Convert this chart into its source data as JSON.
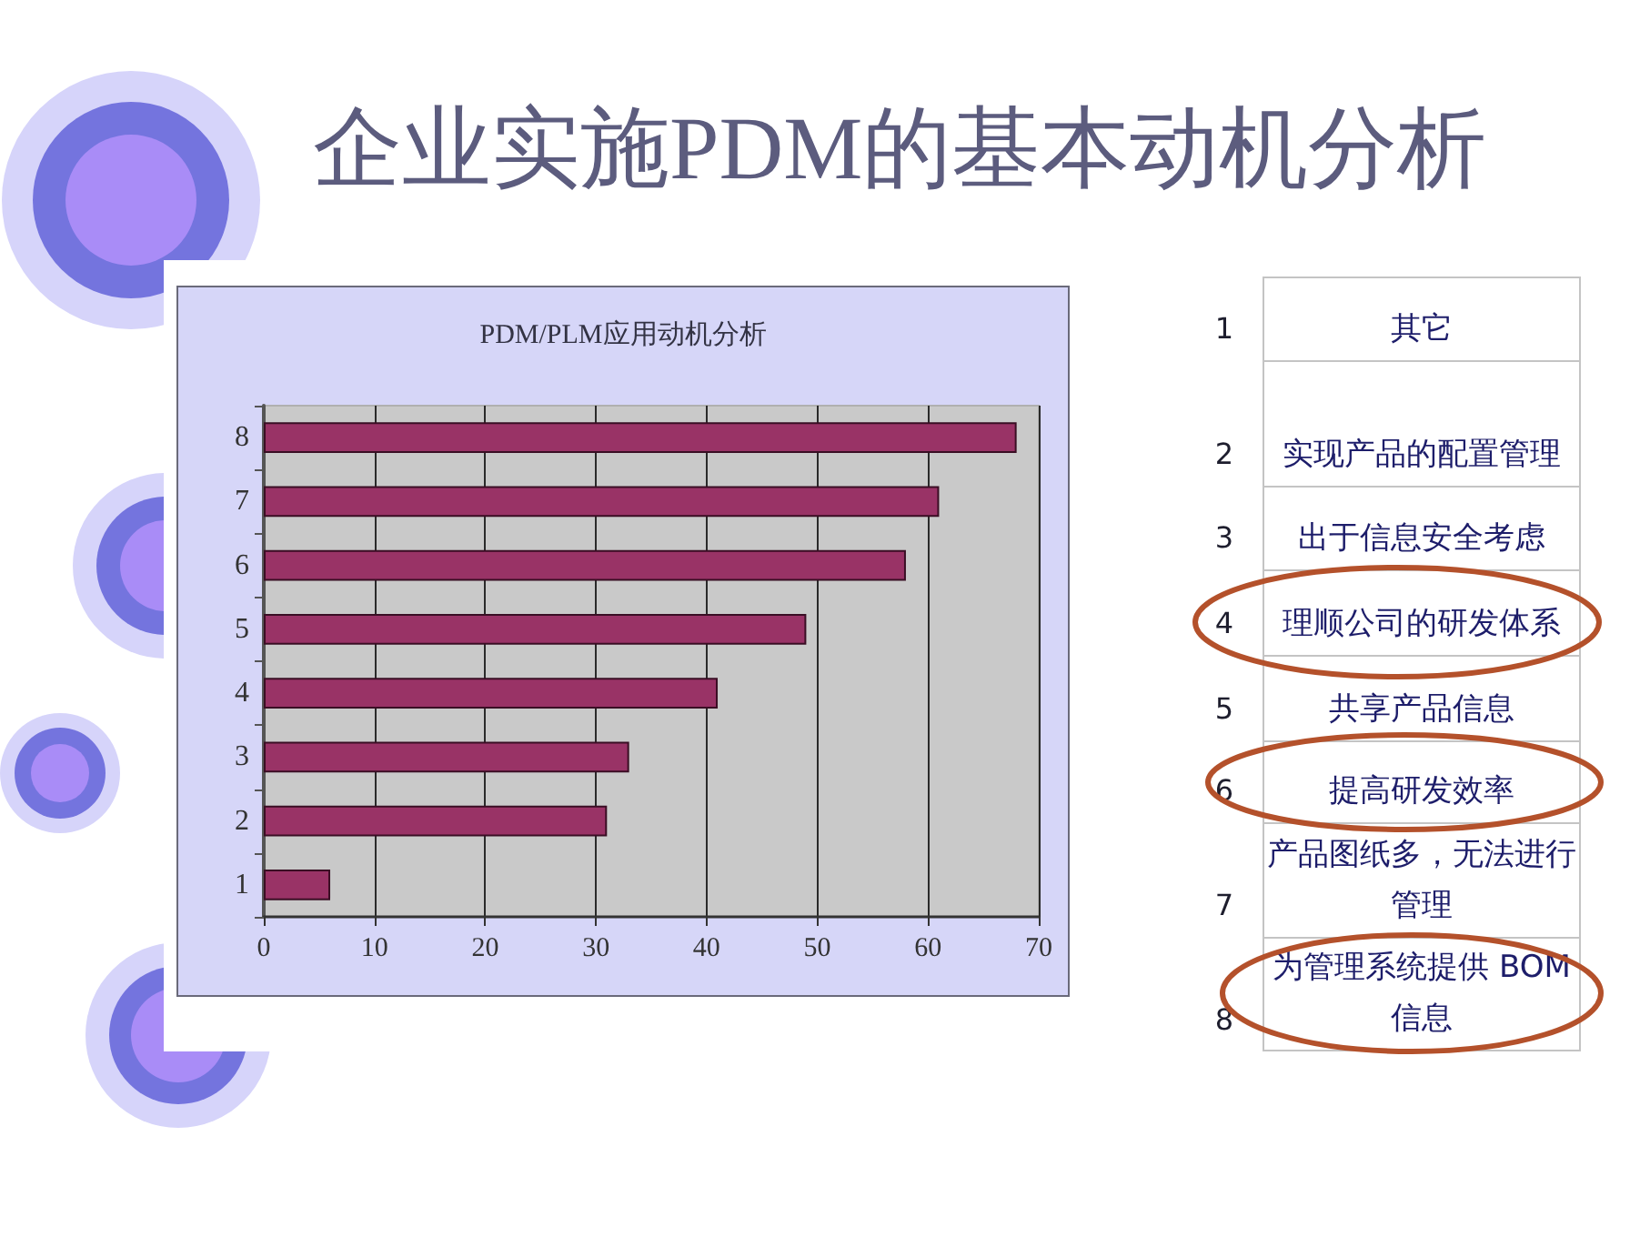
{
  "chart_data": [
    {
      "type": "bar",
      "orientation": "horizontal",
      "title": "企业实施PDM的基本动机分析",
      "subtitle": "PDM/PLM应用动机分析",
      "categories": [
        "8",
        "7",
        "6",
        "5",
        "4",
        "3",
        "2",
        "1"
      ],
      "values": [
        68,
        61,
        58,
        49,
        41,
        33,
        31,
        6
      ],
      "color": "#993366",
      "xlim": [
        0,
        70
      ],
      "xticks": [
        0,
        10,
        20,
        30,
        40,
        50,
        60,
        70
      ],
      "grid": "x"
    },
    {
      "type": "other",
      "annotations": [
        "1",
        "其它",
        "2",
        "实现产品的配置管理",
        "3",
        "出于信息安全考虑",
        "4",
        "理顺公司的研发体系",
        "5",
        "共享产品信息",
        "6",
        "提高研发效率",
        "7",
        "产品图纸多，无法进行管理",
        "8",
        "为管理系统提供 BOM信息"
      ]
    }
  ]
}
